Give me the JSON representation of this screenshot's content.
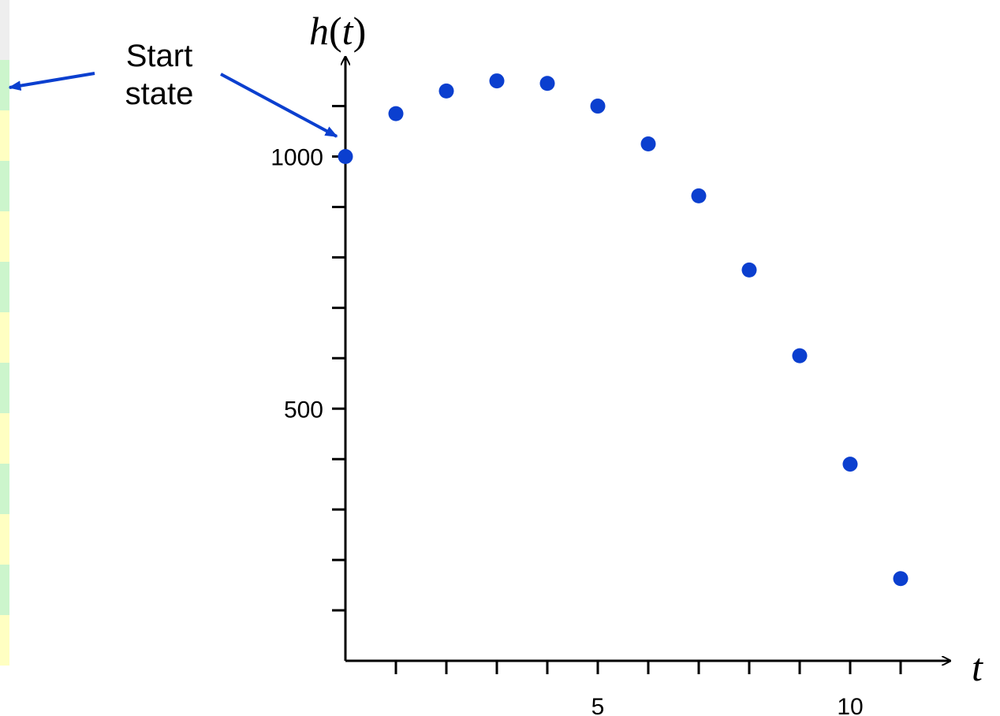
{
  "chart_data": {
    "type": "scatter",
    "xlabel": "t",
    "ylabel_func": "h",
    "ylabel_paren_open": "(",
    "ylabel_var": "t",
    "ylabel_paren_close": ")",
    "x": [
      0,
      1,
      2,
      3,
      4,
      5,
      6,
      7,
      8,
      9,
      10,
      11
    ],
    "y": [
      1000,
      1085,
      1130,
      1150,
      1145,
      1100,
      1025,
      922,
      775,
      605,
      390,
      163
    ],
    "xlim": [
      0,
      12
    ],
    "ylim": [
      0,
      1200
    ],
    "x_ticks": [
      1,
      2,
      3,
      4,
      5,
      6,
      7,
      8,
      9,
      10,
      11
    ],
    "x_tick_labels": [
      {
        "value": 5,
        "label": "5"
      },
      {
        "value": 10,
        "label": "10"
      }
    ],
    "y_ticks": [
      100,
      200,
      300,
      400,
      500,
      600,
      700,
      800,
      900,
      1000,
      1100
    ],
    "y_tick_labels": [
      {
        "value": 500,
        "label": "500"
      },
      {
        "value": 1000,
        "label": "1000"
      }
    ],
    "grid": false,
    "point_color": "#0b3fcf",
    "annotation": {
      "lines": [
        "Start",
        "state"
      ],
      "target_index": 0,
      "arrow_color": "#0b3fcf"
    }
  },
  "side_strip_colors": [
    "#eeeeee",
    "#ccf5cc",
    "#ffffc2",
    "#ccf5cc",
    "#ffffc2",
    "#ccf5cc",
    "#ffffc2",
    "#ccf5cc",
    "#ffffc2",
    "#ccf5cc",
    "#ffffc2",
    "#ccf5cc",
    "#ffffc2"
  ]
}
